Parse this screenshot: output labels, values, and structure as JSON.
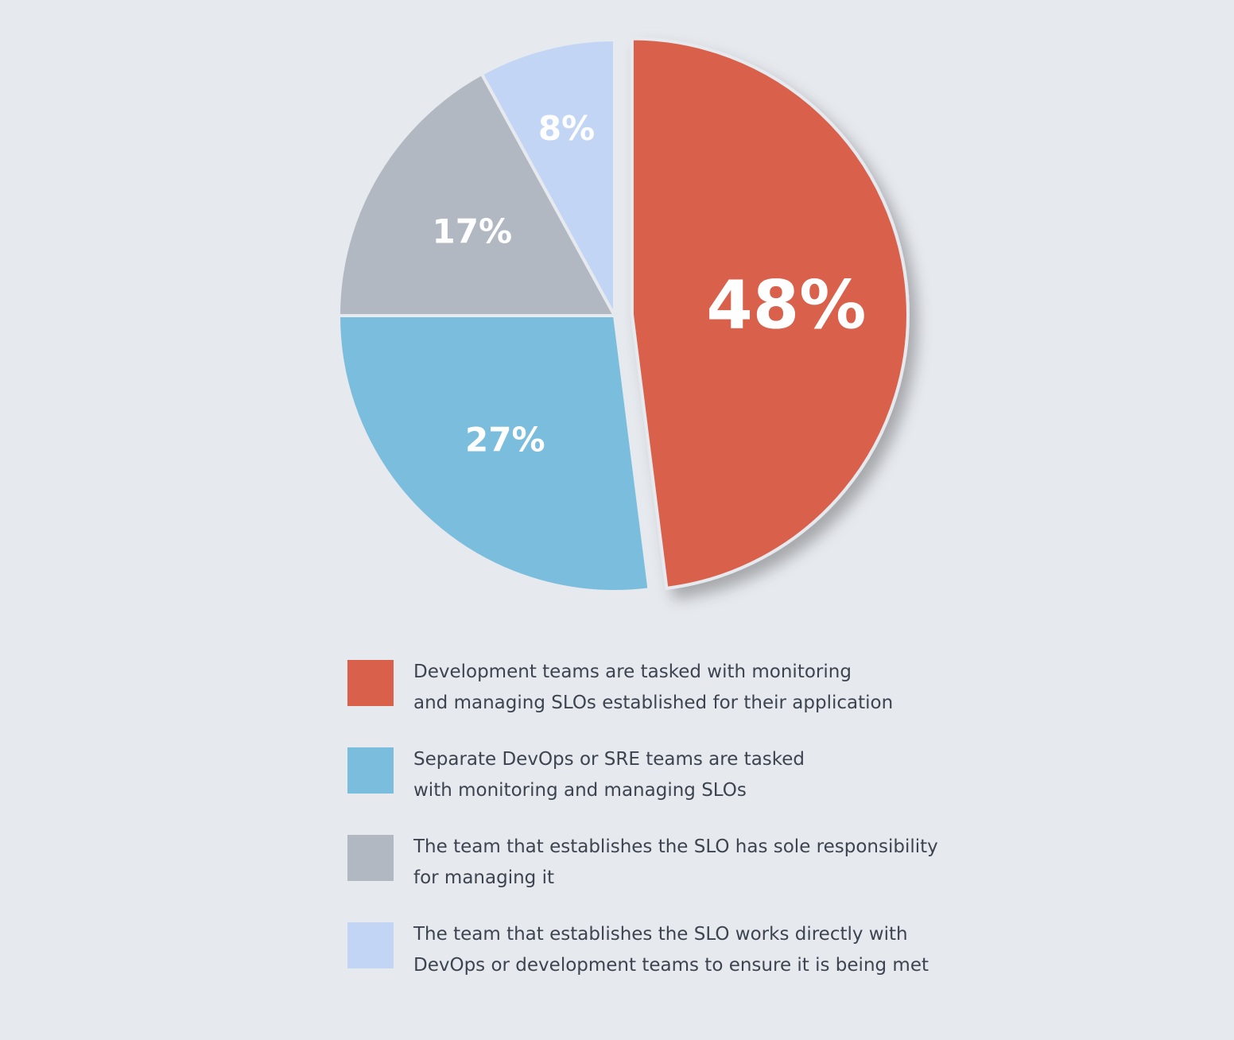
{
  "chart_data": {
    "type": "pie",
    "categories": [
      "Development teams are tasked with monitoring\nand managing SLOs established for their application",
      "Separate DevOps or SRE teams are tasked\nwith monitoring and managing SLOs",
      "The team that establishes the SLO has sole responsibility\nfor managing it",
      "The team that establishes the SLO works directly with\nDevOps or development teams to ensure it is being met"
    ],
    "values": [
      48,
      27,
      17,
      8
    ],
    "value_labels": [
      "48%",
      "27%",
      "17%",
      "8%"
    ],
    "colors": [
      "#d9614b",
      "#7bbddd",
      "#b1b8c2",
      "#c3d5f5"
    ]
  }
}
